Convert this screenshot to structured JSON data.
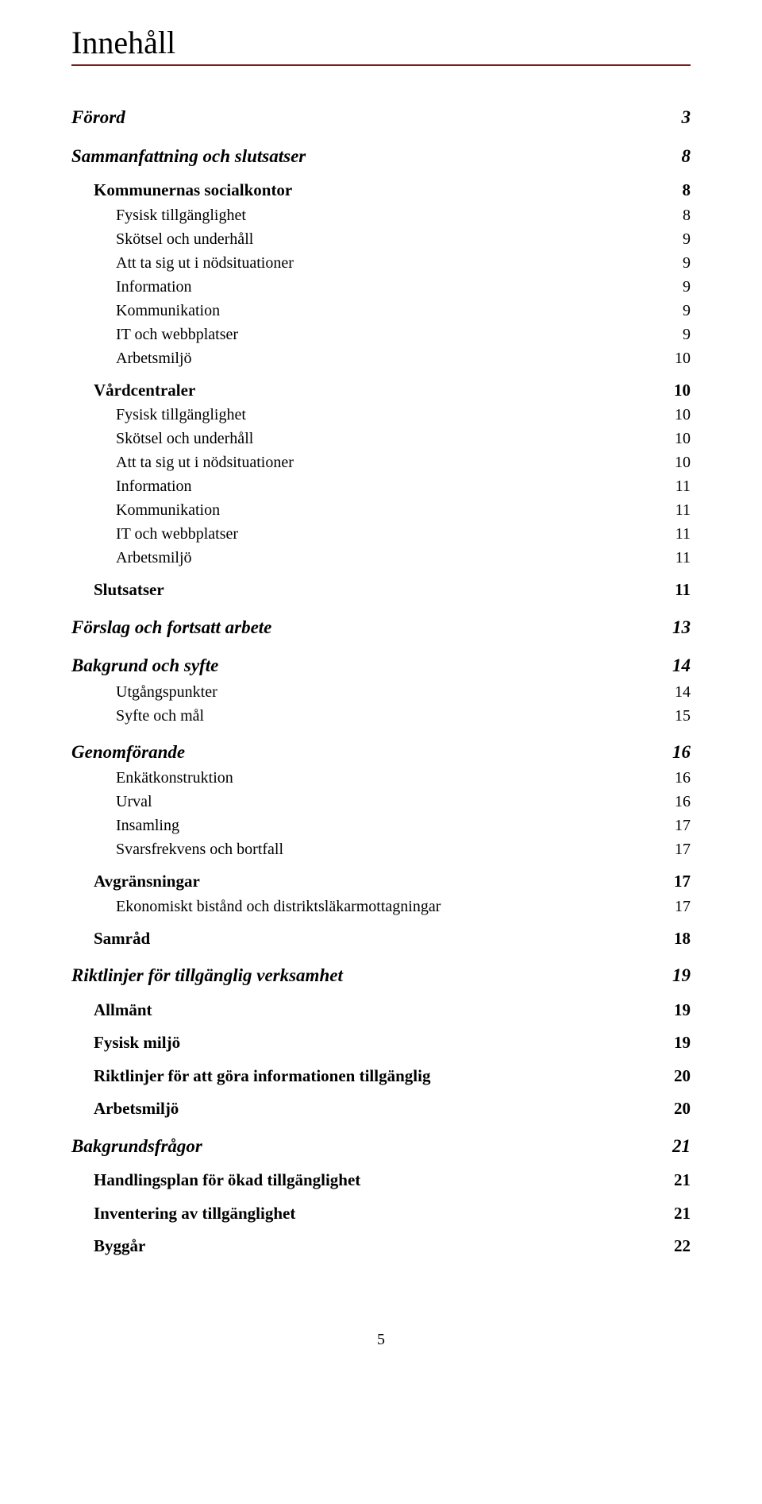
{
  "title": "Innehåll",
  "page_number": "5",
  "colors": {
    "rule": "#7a1b1b",
    "text": "#000000",
    "bg": "#ffffff"
  },
  "entries": [
    {
      "label": "Förord",
      "page": "3",
      "level": 1
    },
    {
      "label": "Sammanfattning och slutsatser",
      "page": "8",
      "level": 1
    },
    {
      "label": "Kommunernas socialkontor",
      "page": "8",
      "level": 2
    },
    {
      "label": "Fysisk tillgänglighet",
      "page": "8",
      "level": 3
    },
    {
      "label": "Skötsel och underhåll",
      "page": "9",
      "level": 3
    },
    {
      "label": "Att ta sig ut i nödsituationer",
      "page": "9",
      "level": 3
    },
    {
      "label": "Information",
      "page": "9",
      "level": 3
    },
    {
      "label": "Kommunikation",
      "page": "9",
      "level": 3
    },
    {
      "label": "IT och webbplatser",
      "page": "9",
      "level": 3
    },
    {
      "label": "Arbetsmiljö",
      "page": "10",
      "level": 3
    },
    {
      "label": "Vårdcentraler",
      "page": "10",
      "level": 2
    },
    {
      "label": "Fysisk tillgänglighet",
      "page": "10",
      "level": 3
    },
    {
      "label": "Skötsel och underhåll",
      "page": "10",
      "level": 3
    },
    {
      "label": "Att ta sig ut i nödsituationer",
      "page": "10",
      "level": 3
    },
    {
      "label": "Information",
      "page": "11",
      "level": 3
    },
    {
      "label": "Kommunikation",
      "page": "11",
      "level": 3
    },
    {
      "label": "IT och webbplatser",
      "page": "11",
      "level": 3
    },
    {
      "label": "Arbetsmiljö",
      "page": "11",
      "level": 3
    },
    {
      "label": "Slutsatser",
      "page": "11",
      "level": 2
    },
    {
      "label": "Förslag och fortsatt arbete",
      "page": "13",
      "level": 1
    },
    {
      "label": "Bakgrund och syfte",
      "page": "14",
      "level": 1
    },
    {
      "label": "Utgångspunkter",
      "page": "14",
      "level": 3
    },
    {
      "label": "Syfte och mål",
      "page": "15",
      "level": 3
    },
    {
      "label": "Genomförande",
      "page": "16",
      "level": 1
    },
    {
      "label": "Enkätkonstruktion",
      "page": "16",
      "level": 3
    },
    {
      "label": "Urval",
      "page": "16",
      "level": 3
    },
    {
      "label": "Insamling",
      "page": "17",
      "level": 3
    },
    {
      "label": "Svarsfrekvens och bortfall",
      "page": "17",
      "level": 3
    },
    {
      "label": "Avgränsningar",
      "page": "17",
      "level": 2
    },
    {
      "label": "Ekonomiskt bistånd och distriktsläkarmottagningar",
      "page": "17",
      "level": 3
    },
    {
      "label": "Samråd",
      "page": "18",
      "level": 2
    },
    {
      "label": "Riktlinjer för tillgänglig verksamhet",
      "page": "19",
      "level": 1
    },
    {
      "label": "Allmänt",
      "page": "19",
      "level": 2
    },
    {
      "label": "Fysisk miljö",
      "page": "19",
      "level": 2
    },
    {
      "label": "Riktlinjer för att göra informationen tillgänglig",
      "page": "20",
      "level": 2
    },
    {
      "label": "Arbetsmiljö",
      "page": "20",
      "level": 2
    },
    {
      "label": "Bakgrundsfrågor",
      "page": "21",
      "level": 1
    },
    {
      "label": "Handlingsplan för ökad tillgänglighet",
      "page": "21",
      "level": 2
    },
    {
      "label": "Inventering av tillgänglighet",
      "page": "21",
      "level": 2
    },
    {
      "label": "Byggår",
      "page": "22",
      "level": 2
    }
  ]
}
